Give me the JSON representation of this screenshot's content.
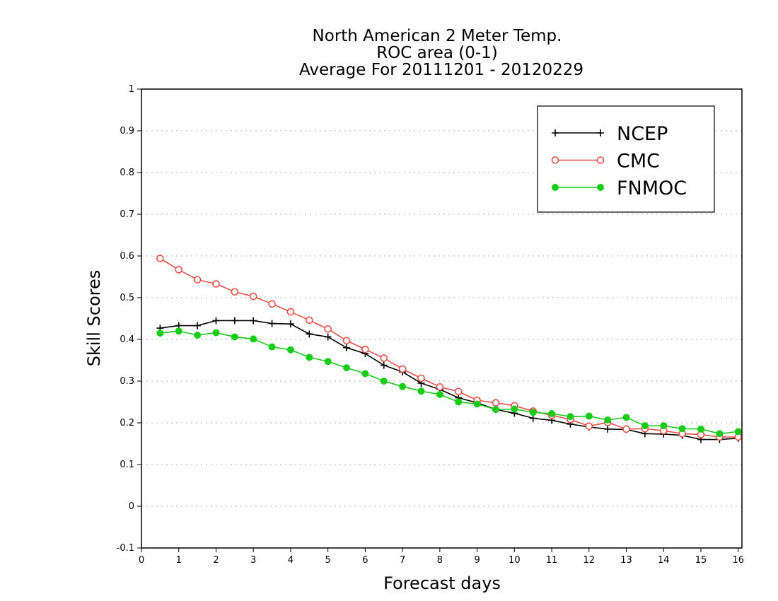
{
  "chart_data": {
    "type": "line",
    "title_lines": [
      "North American 2 Meter Temp.",
      "ROC area (0-1)",
      "Average For 20111201 - 20120229"
    ],
    "xlabel": "Forecast days",
    "ylabel": "Skill Scores",
    "xlim": [
      0,
      16.1
    ],
    "ylim": [
      -0.1,
      1
    ],
    "x_ticks": [
      0,
      1,
      2,
      3,
      4,
      5,
      6,
      7,
      8,
      9,
      10,
      11,
      12,
      13,
      14,
      15,
      16
    ],
    "x_tick_labels": [
      "0",
      "1",
      "2",
      "3",
      "4",
      "5",
      "6",
      "7",
      "8",
      "9",
      "10",
      "11",
      "12",
      "13",
      "14",
      "15",
      "16"
    ],
    "y_ticks": [
      -0.1,
      0,
      0.1,
      0.2,
      0.3,
      0.4,
      0.5,
      0.6,
      0.7,
      0.8,
      0.9,
      1
    ],
    "y_tick_labels": [
      "-0.1",
      "0",
      "0.1",
      "0.2",
      "0.3",
      "0.4",
      "0.5",
      "0.6",
      "0.7",
      "0.8",
      "0.9",
      "1"
    ],
    "grid": "horizontal dotted",
    "legend": {
      "placement": "top-right"
    },
    "x": [
      0.5,
      1,
      1.5,
      2,
      2.5,
      3,
      3.5,
      4,
      4.5,
      5,
      5.5,
      6,
      6.5,
      7,
      7.5,
      8,
      8.5,
      9,
      9.5,
      10,
      10.5,
      11,
      11.5,
      12,
      12.5,
      13,
      13.5,
      14,
      14.5,
      15,
      15.5,
      16
    ],
    "series": [
      {
        "name": "NCEP",
        "color": "#000000",
        "marker": "plus",
        "values": [
          0.427,
          0.433,
          0.433,
          0.445,
          0.445,
          0.445,
          0.438,
          0.437,
          0.413,
          0.406,
          0.38,
          0.366,
          0.338,
          0.322,
          0.295,
          0.28,
          0.26,
          0.248,
          0.232,
          0.223,
          0.211,
          0.206,
          0.197,
          0.19,
          0.185,
          0.184,
          0.174,
          0.173,
          0.17,
          0.16,
          0.16,
          0.163
        ]
      },
      {
        "name": "CMC",
        "color": "#e8504a",
        "marker": "open-circle",
        "values": [
          0.594,
          0.567,
          0.543,
          0.533,
          0.514,
          0.503,
          0.485,
          0.466,
          0.446,
          0.425,
          0.397,
          0.376,
          0.355,
          0.329,
          0.307,
          0.286,
          0.275,
          0.254,
          0.248,
          0.241,
          0.228,
          0.218,
          0.208,
          0.192,
          0.201,
          0.185,
          0.186,
          0.181,
          0.174,
          0.172,
          0.166,
          0.166
        ]
      },
      {
        "name": "FNMOC",
        "color": "#19cc19",
        "marker": "filled-circle",
        "values": [
          0.415,
          0.42,
          0.41,
          0.416,
          0.406,
          0.401,
          0.382,
          0.375,
          0.357,
          0.347,
          0.332,
          0.318,
          0.3,
          0.287,
          0.276,
          0.268,
          0.25,
          0.245,
          0.232,
          0.233,
          0.225,
          0.222,
          0.215,
          0.216,
          0.207,
          0.213,
          0.193,
          0.193,
          0.186,
          0.185,
          0.174,
          0.179
        ]
      }
    ]
  }
}
